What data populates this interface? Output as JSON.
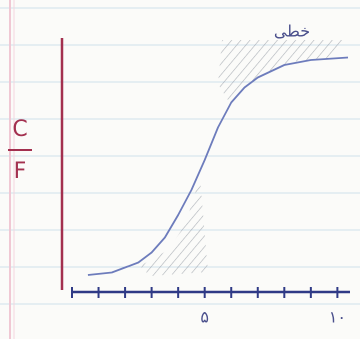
{
  "chart_data": {
    "type": "line",
    "y_label_numerator": "C",
    "y_label_denominator": "F",
    "annotation": "خطی",
    "x": [
      0.6,
      1.5,
      2.5,
      3,
      3.5,
      4,
      4.5,
      5,
      5.5,
      6,
      6.5,
      7,
      8,
      9,
      10.4
    ],
    "values": [
      0.06,
      0.07,
      0.11,
      0.15,
      0.21,
      0.3,
      0.4,
      0.52,
      0.65,
      0.75,
      0.81,
      0.85,
      0.9,
      0.92,
      0.93
    ],
    "color": "#6d7cbc",
    "xlim": [
      0,
      10.4
    ],
    "ylim": [
      0,
      1
    ],
    "xticks": [
      {
        "value": 5,
        "label": "۵"
      },
      {
        "value": 10,
        "label": "۱۰"
      }
    ],
    "x_minor_ticks": [
      0,
      1,
      2,
      3,
      4,
      6,
      7,
      8,
      9
    ]
  }
}
